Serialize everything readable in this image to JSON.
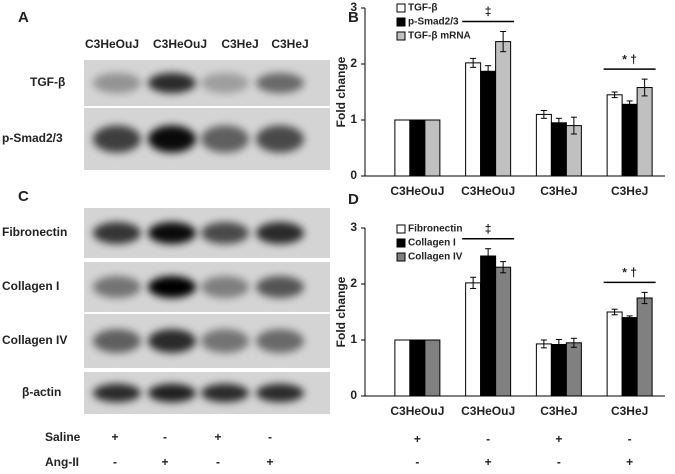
{
  "panel_labels": [
    "A",
    "B",
    "C",
    "D"
  ],
  "blot_A": {
    "lanes": [
      "C3HeOuJ",
      "C3HeOuJ",
      "C3HeJ",
      "C3HeJ"
    ],
    "rows": [
      "TGF-β",
      "p-Smad2/3"
    ]
  },
  "blot_C": {
    "rows": [
      "Fibronectin",
      "Collagen I",
      "Collagen IV",
      "β-actin"
    ]
  },
  "treatments": [
    {
      "label": "Saline",
      "signs": [
        "+",
        "-",
        "+",
        "-"
      ]
    },
    {
      "label": "Ang-II",
      "signs": [
        "-",
        "+",
        "-",
        "+"
      ]
    }
  ],
  "chart_data": [
    {
      "type": "bar",
      "ylabel": "Fold change",
      "categories": [
        "C3HeOuJ",
        "C3HeOuJ",
        "C3HeJ",
        "C3HeJ"
      ],
      "ylim": [
        0,
        3
      ],
      "yticks": [
        0,
        1,
        2,
        3
      ],
      "series": [
        {
          "name": "TGF-β",
          "color": "#ffffff",
          "values": [
            1,
            2.02,
            1.1,
            1.45
          ],
          "errors": [
            0,
            0.08,
            0.07,
            0.05
          ]
        },
        {
          "name": "p-Smad2/3",
          "color": "#000000",
          "values": [
            1,
            1.87,
            0.95,
            1.28
          ],
          "errors": [
            0,
            0.1,
            0.08,
            0.06
          ]
        },
        {
          "name": "TGF-β mRNA",
          "color": "#c0c0c0",
          "values": [
            1,
            2.4,
            0.9,
            1.58
          ],
          "errors": [
            0,
            0.18,
            0.15,
            0.15
          ]
        }
      ],
      "annotations": [
        null,
        "‡",
        null,
        "* †"
      ]
    },
    {
      "type": "bar",
      "ylabel": "Fold change",
      "categories": [
        "C3HeOuJ",
        "C3HeOuJ",
        "C3HeJ",
        "C3HeJ"
      ],
      "ylim": [
        0,
        3
      ],
      "yticks": [
        0,
        1,
        2,
        3
      ],
      "series": [
        {
          "name": "Fibronectin",
          "color": "#ffffff",
          "values": [
            1,
            2.02,
            0.93,
            1.5
          ],
          "errors": [
            0,
            0.1,
            0.07,
            0.05
          ]
        },
        {
          "name": "Collagen I",
          "color": "#000000",
          "values": [
            1,
            2.5,
            0.92,
            1.4
          ],
          "errors": [
            0,
            0.13,
            0.09,
            0.03
          ]
        },
        {
          "name": "Collagen IV",
          "color": "#808080",
          "values": [
            1,
            2.3,
            0.95,
            1.75
          ],
          "errors": [
            0,
            0.1,
            0.08,
            0.1
          ]
        }
      ],
      "annotations": [
        null,
        "‡",
        null,
        "* †"
      ]
    }
  ]
}
